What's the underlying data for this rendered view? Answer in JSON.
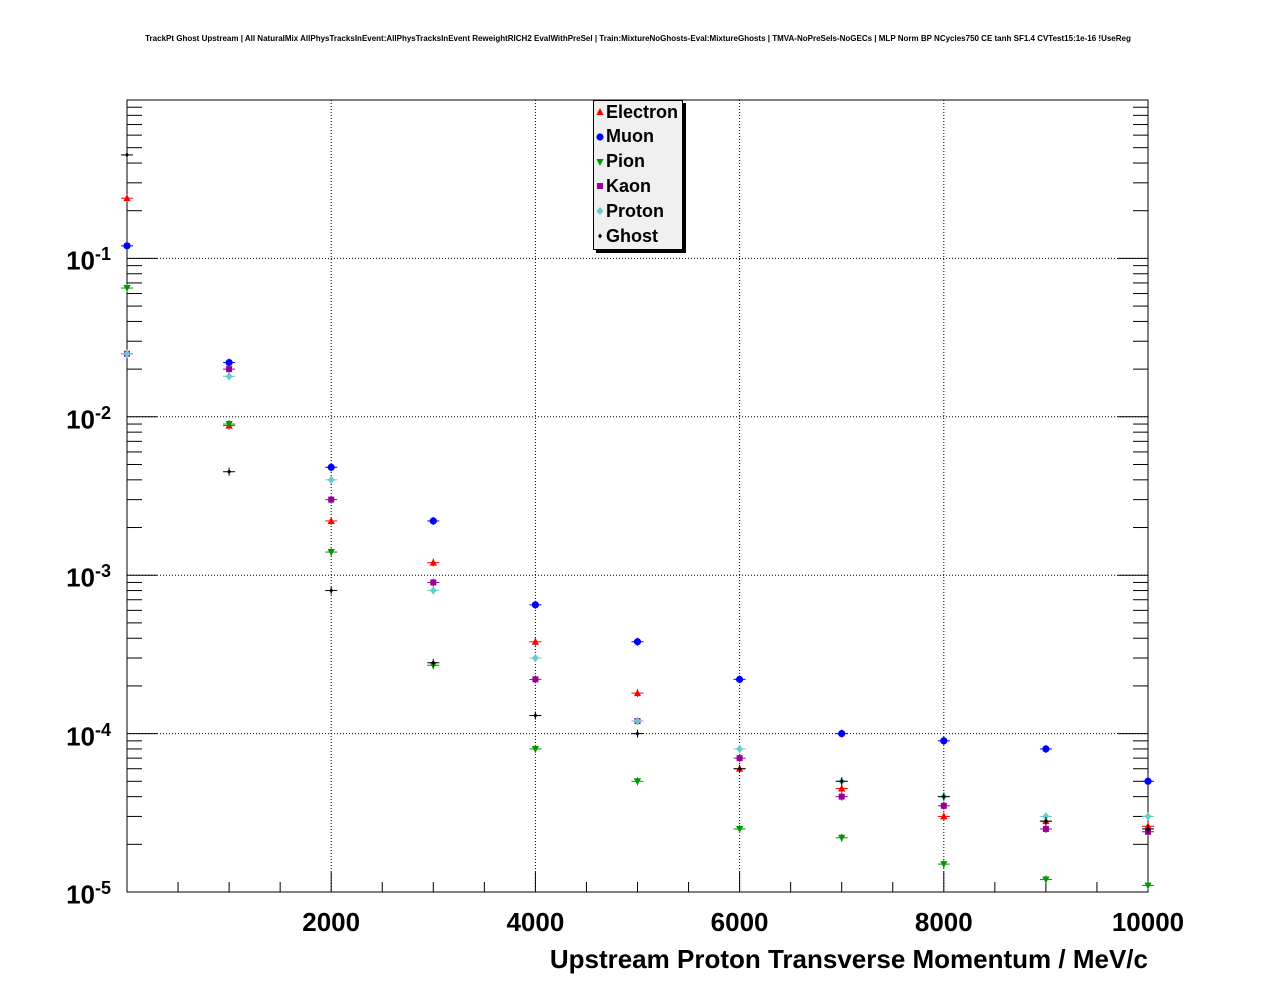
{
  "chart_data": {
    "type": "scatter",
    "title": "TrackPt Ghost Upstream | All NaturalMix AllPhysTracksInEvent:AllPhysTracksInEvent ReweightRICH2 EvalWithPreSel | Train:MixtureNoGhosts-Eval:MixtureGhosts | TMVA-NoPreSels-NoGECs | MLP Norm BP NCycles750 CE tanh SF1.4 CVTest15:1e-16 !UseReg",
    "xlabel": "Upstream Proton Transverse Momentum / MeV/c",
    "ylabel": "",
    "xlim": [
      0,
      10000
    ],
    "ylim": [
      1e-05,
      1
    ],
    "yscale": "log",
    "grid": true,
    "legend_position": "top-center",
    "xticks": [
      {
        "value": 2000,
        "label": "2000"
      },
      {
        "value": 4000,
        "label": "4000"
      },
      {
        "value": 6000,
        "label": "6000"
      },
      {
        "value": 8000,
        "label": "8000"
      },
      {
        "value": 10000,
        "label": "10000"
      }
    ],
    "yticks": [
      {
        "value": 0.1,
        "base": "10",
        "exp": "-1"
      },
      {
        "value": 0.01,
        "base": "10",
        "exp": "-2"
      },
      {
        "value": 0.001,
        "base": "10",
        "exp": "-3"
      },
      {
        "value": 0.0001,
        "base": "10",
        "exp": "-4"
      },
      {
        "value": 1e-05,
        "base": "10",
        "exp": "-5"
      }
    ],
    "series": [
      {
        "name": "Electron",
        "color": "#ff0000",
        "marker": "triangle-up",
        "points": [
          [
            0.0,
            0.24
          ],
          [
            1000.0,
            0.0088
          ],
          [
            2000.0,
            0.0022
          ],
          [
            3000.0,
            0.0012
          ],
          [
            4000.0,
            0.00038
          ],
          [
            5000.0,
            0.00018
          ],
          [
            6000.0,
            6e-05
          ],
          [
            7000.0,
            4.5e-05
          ],
          [
            8000.0,
            3e-05
          ],
          [
            9000.0,
            2.8e-05
          ],
          [
            10000.0,
            2.6e-05
          ]
        ]
      },
      {
        "name": "Muon",
        "color": "#0000ff",
        "marker": "circle",
        "points": [
          [
            0.0,
            0.12
          ],
          [
            1000.0,
            0.022
          ],
          [
            2000.0,
            0.0048
          ],
          [
            3000.0,
            0.0022
          ],
          [
            4000.0,
            0.00065
          ],
          [
            5000.0,
            0.00038
          ],
          [
            6000.0,
            0.00022
          ],
          [
            7000.0,
            0.0001
          ],
          [
            8000.0,
            9e-05
          ],
          [
            9000.0,
            8e-05
          ],
          [
            10000.0,
            5e-05
          ]
        ]
      },
      {
        "name": "Pion",
        "color": "#009900",
        "marker": "triangle-down",
        "points": [
          [
            0.0,
            0.065
          ],
          [
            1000.0,
            0.009
          ],
          [
            2000.0,
            0.0014
          ],
          [
            3000.0,
            0.00027
          ],
          [
            4000.0,
            8e-05
          ],
          [
            5000.0,
            5e-05
          ],
          [
            6000.0,
            2.5e-05
          ],
          [
            7000.0,
            2.2e-05
          ],
          [
            8000.0,
            1.5e-05
          ],
          [
            9000.0,
            1.2e-05
          ],
          [
            10000.0,
            1.1e-05
          ]
        ]
      },
      {
        "name": "Kaon",
        "color": "#990099",
        "marker": "square",
        "points": [
          [
            0.0,
            0.025
          ],
          [
            1000.0,
            0.02
          ],
          [
            2000.0,
            0.003
          ],
          [
            3000.0,
            0.0009
          ],
          [
            4000.0,
            0.00022
          ],
          [
            5000.0,
            0.00012
          ],
          [
            6000.0,
            7e-05
          ],
          [
            7000.0,
            4e-05
          ],
          [
            8000.0,
            3.5e-05
          ],
          [
            9000.0,
            2.5e-05
          ],
          [
            10000.0,
            2.4e-05
          ]
        ]
      },
      {
        "name": "Proton",
        "color": "#66cccc",
        "marker": "diamond",
        "points": [
          [
            0.0,
            0.025
          ],
          [
            1000.0,
            0.018
          ],
          [
            2000.0,
            0.004
          ],
          [
            3000.0,
            0.0008
          ],
          [
            4000.0,
            0.0003
          ],
          [
            5000.0,
            0.00012
          ],
          [
            6000.0,
            8e-05
          ],
          [
            7000.0,
            5e-05
          ],
          [
            8000.0,
            4e-05
          ],
          [
            9000.0,
            3e-05
          ],
          [
            10000.0,
            3e-05
          ]
        ]
      },
      {
        "name": "Ghost",
        "color": "#000000",
        "marker": "diamond-small",
        "points": [
          [
            0.0,
            0.45
          ],
          [
            1000.0,
            0.0045
          ],
          [
            2000.0,
            0.0008
          ],
          [
            3000.0,
            0.00028
          ],
          [
            4000.0,
            0.00013
          ],
          [
            5000.0,
            0.0001
          ],
          [
            6000.0,
            6e-05
          ],
          [
            7000.0,
            5e-05
          ],
          [
            8000.0,
            4e-05
          ],
          [
            9000.0,
            2.8e-05
          ],
          [
            10000.0,
            2.5e-05
          ]
        ]
      }
    ]
  }
}
